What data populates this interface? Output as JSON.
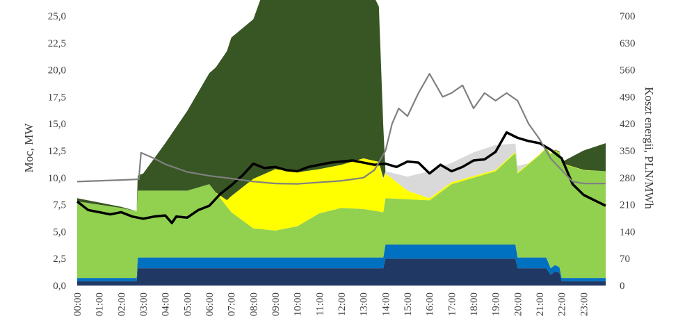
{
  "chart_data": {
    "type": "area",
    "title": "",
    "ylabel_left": "Moc, MW",
    "ylabel_right": "Koszt energii, PLN/MWh",
    "ylim_left": [
      0,
      25
    ],
    "ylim_right": [
      0,
      700
    ],
    "y_ticks_left": [
      "0,0",
      "2,5",
      "5,0",
      "7,5",
      "10,0",
      "12,5",
      "15,0",
      "17,5",
      "20,0",
      "22,5",
      "25,0"
    ],
    "y_ticks_right": [
      "0",
      "70",
      "140",
      "210",
      "280",
      "350",
      "420",
      "490",
      "560",
      "630",
      "700"
    ],
    "x_ticks": [
      "00:00",
      "01:00",
      "02:00",
      "03:00",
      "04:00",
      "05:00",
      "06:00",
      "07:00",
      "08:00",
      "09:00",
      "10:00",
      "11:00",
      "12:00",
      "13:00",
      "14:00",
      "15:00",
      "16:00",
      "17:00",
      "18:00",
      "19:00",
      "20:00",
      "21:00",
      "22:00",
      "23:00"
    ],
    "xlim_hours": [
      0,
      24
    ],
    "legend": "none",
    "grid": false,
    "stacked_series": [
      {
        "color": "#1f3864",
        "hours": [
          0,
          2.7,
          2.75,
          13.9,
          14.0,
          19.9,
          20.0,
          21.3,
          21.5,
          21.7,
          21.9,
          22.0,
          24
        ],
        "values": [
          0.4,
          0.4,
          1.6,
          1.6,
          2.5,
          2.5,
          1.6,
          1.6,
          1.0,
          1.3,
          1.2,
          0.4,
          0.4
        ]
      },
      {
        "color": "#0070c0",
        "hours": [
          0,
          2.7,
          2.75,
          13.9,
          14.0,
          19.9,
          20.0,
          21.3,
          21.5,
          21.7,
          21.9,
          22.0,
          24
        ],
        "values": [
          0.3,
          0.3,
          1.0,
          1.0,
          1.3,
          1.3,
          1.0,
          1.0,
          0.6,
          0.6,
          0.5,
          0.3,
          0.3
        ]
      },
      {
        "color": "#92d050",
        "hours": [
          0,
          1,
          2,
          2.7,
          3,
          4,
          5,
          6,
          7,
          8,
          9,
          10,
          11,
          12,
          13,
          13.9,
          14,
          15,
          16,
          17,
          18,
          19,
          19.9,
          20,
          21,
          21.5,
          22,
          23,
          24
        ],
        "values": [
          7.1,
          6.8,
          6.5,
          6.2,
          6.2,
          6.2,
          6.2,
          6.8,
          4.2,
          2.7,
          2.5,
          2.9,
          4.1,
          4.6,
          4.5,
          4.2,
          4.3,
          4.2,
          4.1,
          5.6,
          6.2,
          6.8,
          8.5,
          7.8,
          9.5,
          10.6,
          10.6,
          10.0,
          9.9
        ]
      },
      {
        "color": "#ffff00",
        "hours": [
          0,
          6.3,
          6.8,
          7,
          8,
          9,
          10,
          11,
          12,
          13,
          13.7,
          14,
          15,
          16,
          24
        ],
        "values": [
          0,
          0,
          0.6,
          1.5,
          4.6,
          5.7,
          5.0,
          4.1,
          4.0,
          4.7,
          4.6,
          2.3,
          0.8,
          0.2,
          0
        ]
      },
      {
        "color": "#d9d9d9",
        "hours": [
          0,
          13.7,
          14,
          15,
          16,
          17,
          18,
          19,
          20,
          20.5,
          24
        ],
        "values": [
          0,
          0,
          0.2,
          1.3,
          2.5,
          1.8,
          2.2,
          2.3,
          0.6,
          0,
          0
        ]
      },
      {
        "color": "#375623",
        "hours": [
          0,
          1,
          2,
          2.7,
          2.75,
          3,
          4,
          5,
          6,
          7,
          8,
          9,
          10,
          11,
          12,
          13,
          13.7,
          14,
          20.5,
          21.5,
          22,
          23,
          24
        ],
        "values": [
          0.3,
          0.2,
          0.1,
          0.0,
          1.4,
          1.6,
          4.4,
          7.4,
          10.3,
          14.7,
          14.8,
          19.6,
          22.3,
          16.5,
          17.2,
          17.0,
          14.4,
          0,
          0,
          0,
          0.1,
          1.8,
          2.6
        ]
      }
    ],
    "lines": [
      {
        "color": "#000000",
        "axis": "left",
        "hours": [
          0,
          0.5,
          1,
          1.5,
          2,
          2.5,
          3,
          3.5,
          4,
          4.3,
          4.5,
          5,
          5.5,
          6,
          6.5,
          7,
          7.5,
          8,
          8.5,
          9,
          9.5,
          10,
          10.5,
          11,
          11.5,
          12,
          12.5,
          13,
          13.5,
          14,
          14.5,
          15,
          15.5,
          16,
          16.5,
          17,
          17.5,
          18,
          18.5,
          19,
          19.5,
          20,
          20.5,
          21,
          21.5,
          22,
          22.5,
          23,
          23.5,
          24
        ],
        "values": [
          7.8,
          7.0,
          6.8,
          6.6,
          6.8,
          6.4,
          6.2,
          6.4,
          6.5,
          5.8,
          6.4,
          6.3,
          7.0,
          7.4,
          8.5,
          9.3,
          10.2,
          11.3,
          10.9,
          11.0,
          10.7,
          10.6,
          11.0,
          11.2,
          11.4,
          11.5,
          11.6,
          11.4,
          11.2,
          11.3,
          11.0,
          11.5,
          11.4,
          10.4,
          11.2,
          10.6,
          11.0,
          11.6,
          11.7,
          12.4,
          14.2,
          13.7,
          13.4,
          13.2,
          12.6,
          11.8,
          9.4,
          8.4,
          7.9,
          7.4
        ]
      },
      {
        "color": "#808080",
        "axis": "right",
        "hours": [
          0,
          1,
          2,
          2.8,
          2.9,
          3.5,
          4,
          5,
          6,
          7,
          8,
          9,
          10,
          11,
          12,
          13,
          13.5,
          14,
          14.3,
          14.6,
          15,
          15.5,
          16,
          16.3,
          16.6,
          17,
          17.5,
          18,
          18.5,
          19,
          19.5,
          20,
          20.5,
          21,
          21.5,
          22,
          22.5,
          23,
          24
        ],
        "values": [
          270,
          272,
          274,
          276,
          345,
          330,
          315,
          295,
          285,
          278,
          270,
          265,
          264,
          268,
          272,
          280,
          300,
          350,
          420,
          460,
          440,
          500,
          550,
          520,
          490,
          500,
          520,
          460,
          500,
          480,
          500,
          480,
          420,
          380,
          330,
          300,
          270,
          265,
          265
        ]
      }
    ]
  }
}
